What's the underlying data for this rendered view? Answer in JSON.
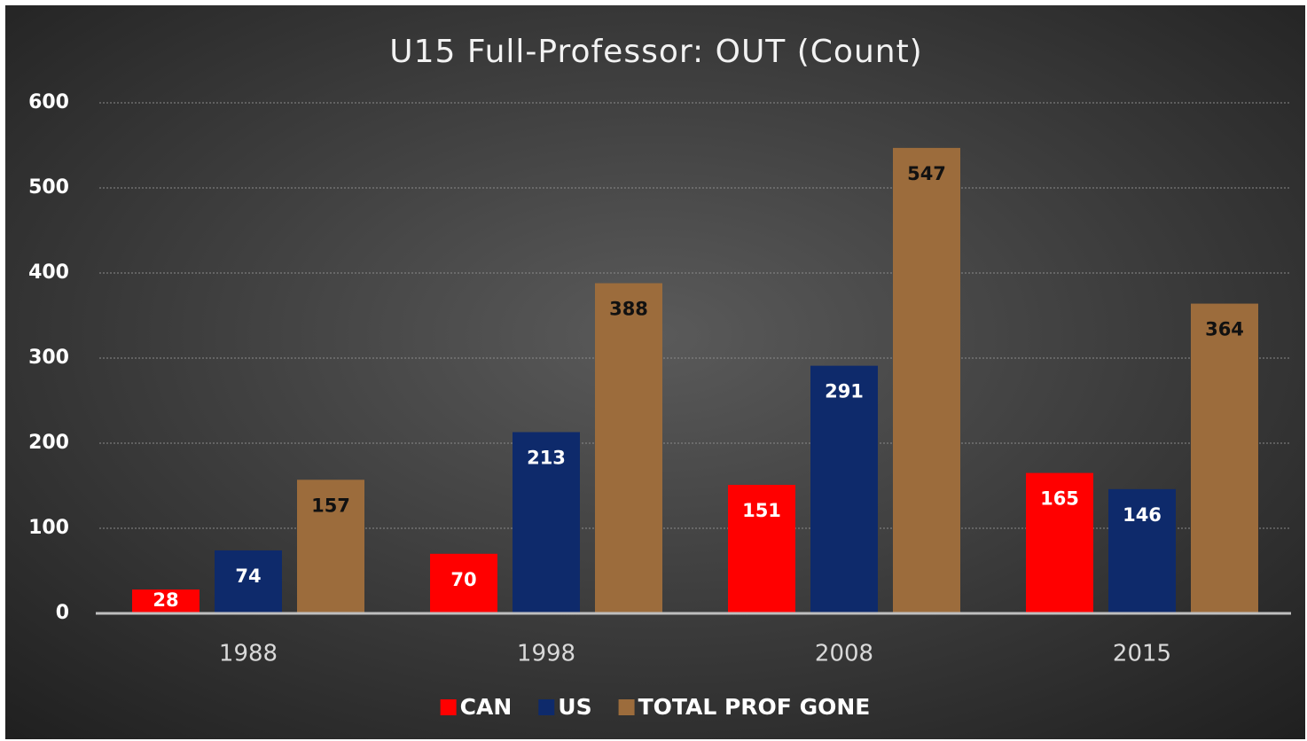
{
  "chart_data": {
    "type": "bar",
    "title": "U15 Full-Professor: OUT (Count)",
    "categories": [
      "1988",
      "1998",
      "2008",
      "2015"
    ],
    "series": [
      {
        "name": "CAN",
        "color": "#ff0000",
        "values": [
          28,
          70,
          151,
          165
        ]
      },
      {
        "name": "US",
        "color": "#0e2a6b",
        "values": [
          74,
          213,
          291,
          146
        ]
      },
      {
        "name": "TOTAL PROF GONE",
        "color": "#9c6c3c",
        "values": [
          157,
          388,
          547,
          364
        ]
      }
    ],
    "ylim": [
      0,
      600
    ],
    "yticks": [
      0,
      100,
      200,
      300,
      400,
      500,
      600
    ],
    "grid": true,
    "legend": "bottom"
  }
}
